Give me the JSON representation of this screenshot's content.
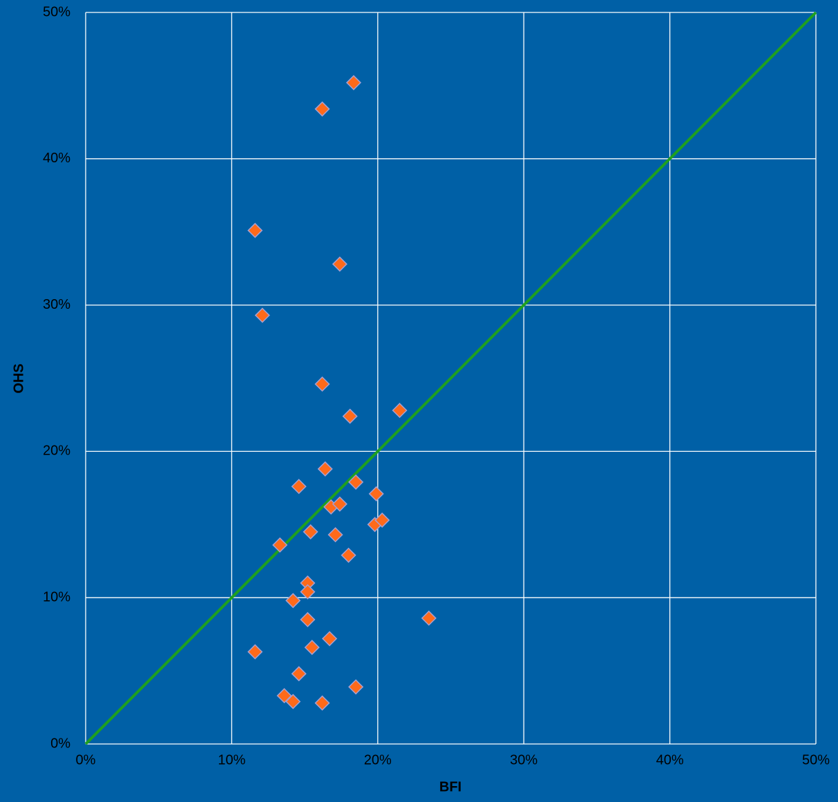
{
  "chart_data": {
    "type": "scatter",
    "x_label": "BFI",
    "y_label": "OHS",
    "xlim": [
      0,
      50
    ],
    "ylim": [
      0,
      50
    ],
    "xticks": [
      {
        "value": 0,
        "label": "0%"
      },
      {
        "value": 10,
        "label": "10%"
      },
      {
        "value": 20,
        "label": "20%"
      },
      {
        "value": 30,
        "label": "30%"
      },
      {
        "value": 40,
        "label": "40%"
      },
      {
        "value": 50,
        "label": "50%"
      }
    ],
    "yticks": [
      {
        "value": 0,
        "label": "0%"
      },
      {
        "value": 10,
        "label": "10%"
      },
      {
        "value": 20,
        "label": "20%"
      },
      {
        "value": 30,
        "label": "30%"
      },
      {
        "value": 40,
        "label": "40%"
      },
      {
        "value": 50,
        "label": "50%"
      }
    ],
    "grid": true,
    "background": "#0060a6",
    "series": [
      {
        "color": "#ff6a1a",
        "x": [
          18.35,
          16.2,
          11.6,
          17.4,
          12.1,
          16.2,
          18.1,
          21.5,
          16.4,
          14.6,
          18.5,
          19.9,
          16.8,
          17.4,
          19.8,
          20.3,
          15.4,
          17.1,
          13.3,
          18.0,
          15.2,
          15.2,
          14.2,
          23.5,
          15.2,
          16.7,
          15.5,
          11.6,
          14.6,
          18.5,
          13.6,
          14.2,
          16.2
        ],
        "values": [
          45.2,
          43.4,
          35.1,
          32.8,
          29.3,
          24.6,
          22.4,
          22.8,
          18.8,
          17.6,
          17.9,
          17.1,
          16.2,
          16.4,
          15.0,
          15.3,
          14.5,
          14.3,
          13.6,
          12.9,
          11.0,
          10.4,
          9.8,
          8.6,
          8.5,
          7.2,
          6.6,
          6.3,
          4.8,
          3.9,
          3.3,
          2.9,
          2.8
        ]
      }
    ],
    "reference_line": {
      "color": "#1fa01f",
      "x": [
        0,
        50
      ],
      "values": [
        0,
        50
      ]
    }
  }
}
